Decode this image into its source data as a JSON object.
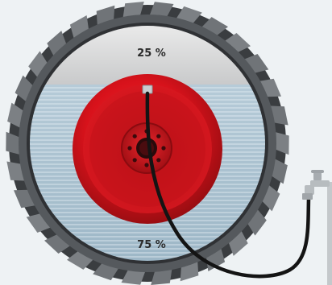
{
  "labels": {
    "air_percent": "25 %",
    "water_percent": "75 %"
  },
  "fill": {
    "water_fraction": 0.75,
    "air_fraction": 0.25
  },
  "colors": {
    "background": "#eef2f4",
    "tire_tread": "#6a6e72",
    "tire_dark": "#3a3d40",
    "air_zone": "#d9dadb",
    "water_zone": "#a9c2d2",
    "water_lines": "#e9f1f6",
    "rim_red": "#d8121b",
    "rim_dark": "#8e0c10",
    "hose": "#141414",
    "tap": "#b7bcbf",
    "label_text": "#2b2b2b"
  },
  "icons": {
    "tire": "tractor-tire-icon",
    "rim": "wheel-rim-icon",
    "valve": "valve-icon",
    "tap": "water-tap-icon"
  }
}
